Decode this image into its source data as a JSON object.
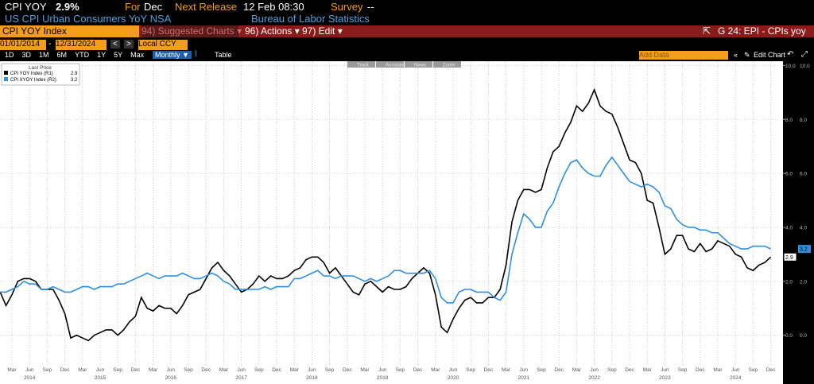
{
  "header": {
    "ticker": "CPI YOY",
    "price": "2.9%",
    "period_label": "For",
    "period": "Dec",
    "release_label": "Next Release",
    "release": "12 Feb 08:30",
    "survey_label": "Survey",
    "survey": "--",
    "description": "US CPI Urban Consumers YoY NSA",
    "source": "Bureau of Labor Statistics"
  },
  "toolbar": {
    "security": "CPI YOY Index",
    "menus": [
      "94) Suggested Charts",
      "96) Actions",
      "97) Edit"
    ],
    "page": "G 24: EPI - CPIs yoy"
  },
  "dates": {
    "start": "01/01/2014",
    "end": "12/31/2024",
    "currency": "Local CCY"
  },
  "controls": {
    "ranges": [
      "1D",
      "3D",
      "1M",
      "6M",
      "YTD",
      "1Y",
      "5Y",
      "Max"
    ],
    "frequency": "Monthly",
    "table": "Table",
    "add_data": "Add Data",
    "edit_chart": "Edit Chart"
  },
  "chart_tools": [
    "Track",
    "Annotate",
    "News",
    "Zoom"
  ],
  "chart_data": {
    "type": "line",
    "legend_title": "Last Price",
    "categories": [
      null,
      null,
      "Mar",
      null,
      null,
      "Jun",
      null,
      null,
      "Sep",
      null,
      null,
      "Dec",
      null,
      null,
      "Mar",
      null,
      null,
      "Jun",
      null,
      null,
      "Sep",
      null,
      null,
      "Dec",
      null,
      null,
      "Mar",
      null,
      null,
      "Jun",
      null,
      null,
      "Sep",
      null,
      null,
      "Dec",
      null,
      null,
      "Mar",
      null,
      null,
      "Jun",
      null,
      null,
      "Sep",
      null,
      null,
      "Dec",
      null,
      null,
      "Mar",
      null,
      null,
      "Jun",
      null,
      null,
      "Sep",
      null,
      null,
      "Dec",
      null,
      null,
      "Mar",
      null,
      null,
      "Jun",
      null,
      null,
      "Sep",
      null,
      null,
      "Dec",
      null,
      null,
      "Mar",
      null,
      null,
      "Jun",
      null,
      null,
      "Sep",
      null,
      null,
      "Dec",
      null,
      null,
      "Mar",
      null,
      null,
      "Jun",
      null,
      null,
      "Sep",
      null,
      null,
      "Dec",
      null,
      null,
      "Mar",
      null,
      null,
      "Jun",
      null,
      null,
      "Sep",
      null,
      null,
      "Dec",
      null,
      null,
      "Mar",
      null,
      null,
      "Jun",
      null,
      null,
      "Sep",
      null,
      null,
      "Dec",
      null,
      null,
      "Mar",
      null,
      null,
      "Jun",
      null,
      null,
      "Sep",
      null,
      null,
      "Dec"
    ],
    "years": [
      "2014",
      "2015",
      "2016",
      "2017",
      "2018",
      "2019",
      "2020",
      "2021",
      "2022",
      "2023",
      "2024"
    ],
    "series": [
      {
        "name": "CPI YOY Index (R1)",
        "color": "#000000",
        "axis": "y",
        "values": [
          1.6,
          1.1,
          1.5,
          2.0,
          2.1,
          2.1,
          2.0,
          1.7,
          1.7,
          1.7,
          1.3,
          0.8,
          -0.1,
          0.0,
          -0.1,
          -0.2,
          0.0,
          0.1,
          0.2,
          0.2,
          0.0,
          0.2,
          0.5,
          0.7,
          1.4,
          1.0,
          0.9,
          1.1,
          1.0,
          1.0,
          0.8,
          1.1,
          1.5,
          1.6,
          1.7,
          2.1,
          2.5,
          2.7,
          2.4,
          2.2,
          1.9,
          1.6,
          1.7,
          1.9,
          2.2,
          2.0,
          2.2,
          2.1,
          2.1,
          2.2,
          2.4,
          2.5,
          2.8,
          2.9,
          2.9,
          2.7,
          2.3,
          2.5,
          2.2,
          1.9,
          1.6,
          1.5,
          1.9,
          2.0,
          1.8,
          1.6,
          1.8,
          1.7,
          1.7,
          1.8,
          2.1,
          2.3,
          2.5,
          2.3,
          1.5,
          0.3,
          0.1,
          0.6,
          1.0,
          1.3,
          1.4,
          1.2,
          1.2,
          1.4,
          1.4,
          1.7,
          2.6,
          4.2,
          5.0,
          5.4,
          5.4,
          5.3,
          5.4,
          6.2,
          6.8,
          7.0,
          7.5,
          7.9,
          8.5,
          8.3,
          8.6,
          9.1,
          8.5,
          8.3,
          8.2,
          7.7,
          7.1,
          6.5,
          6.4,
          6.0,
          5.0,
          4.9,
          4.0,
          3.0,
          3.2,
          3.7,
          3.7,
          3.2,
          3.1,
          3.4,
          3.1,
          3.2,
          3.5,
          3.4,
          3.3,
          3.0,
          2.9,
          2.5,
          2.4,
          2.6,
          2.7,
          2.9
        ]
      },
      {
        "name": "CPI XYOY Index (R2)",
        "color": "#2f8fde",
        "axis": "y2",
        "values": [
          1.6,
          1.6,
          1.7,
          1.8,
          2.0,
          1.9,
          1.9,
          1.7,
          1.7,
          1.8,
          1.7,
          1.6,
          1.6,
          1.7,
          1.8,
          1.8,
          1.7,
          1.8,
          1.8,
          1.8,
          1.9,
          1.9,
          2.0,
          2.1,
          2.2,
          2.3,
          2.2,
          2.1,
          2.2,
          2.2,
          2.2,
          2.3,
          2.2,
          2.1,
          2.1,
          2.2,
          2.3,
          2.2,
          2.0,
          1.9,
          1.7,
          1.7,
          1.7,
          1.7,
          1.7,
          1.8,
          1.7,
          1.8,
          1.8,
          1.8,
          2.1,
          2.1,
          2.2,
          2.3,
          2.4,
          2.2,
          2.2,
          2.1,
          2.2,
          2.2,
          2.2,
          2.1,
          2.0,
          2.1,
          2.0,
          2.1,
          2.2,
          2.4,
          2.4,
          2.3,
          2.3,
          2.3,
          2.3,
          2.4,
          2.1,
          1.4,
          1.2,
          1.2,
          1.6,
          1.7,
          1.7,
          1.6,
          1.6,
          1.6,
          1.4,
          1.3,
          1.6,
          3.0,
          3.8,
          4.5,
          4.3,
          4.0,
          4.0,
          4.6,
          4.9,
          5.5,
          6.0,
          6.4,
          6.5,
          6.2,
          6.0,
          5.9,
          5.9,
          6.3,
          6.6,
          6.3,
          6.0,
          5.7,
          5.6,
          5.5,
          5.6,
          5.5,
          5.3,
          4.8,
          4.7,
          4.3,
          4.1,
          4.0,
          4.0,
          3.9,
          3.9,
          3.8,
          3.8,
          3.6,
          3.4,
          3.3,
          3.2,
          3.2,
          3.3,
          3.3,
          3.3,
          3.2
        ]
      }
    ],
    "ylim": [
      -1.1,
      10.1
    ],
    "yticks": [
      {
        "value": 0,
        "label": "0.0"
      },
      {
        "value": 2,
        "label": "2.0"
      },
      {
        "value": 4,
        "label": "4.0"
      },
      {
        "value": 6,
        "label": "6.0"
      },
      {
        "value": 8,
        "label": "8.0"
      },
      {
        "value": 10,
        "label": "10.0"
      }
    ],
    "y2lim": [
      -1.1,
      10.1
    ],
    "y2ticks": [
      {
        "value": 0,
        "label": "0.0"
      },
      {
        "value": 2,
        "label": "2.0"
      },
      {
        "value": 4,
        "label": "4.0"
      },
      {
        "value": 6,
        "label": "6.0"
      },
      {
        "value": 8,
        "label": "8.0"
      },
      {
        "value": 10,
        "label": "10.0"
      }
    ],
    "grid": true,
    "legend": "top-left"
  }
}
